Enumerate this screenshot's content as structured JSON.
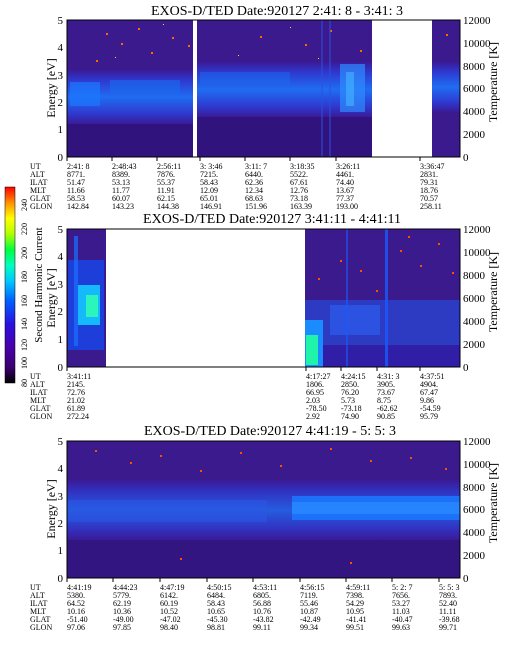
{
  "colorbar": {
    "label": "Second Harmonic Current",
    "ticks": [
      "240",
      "220",
      "200",
      "180",
      "160",
      "140",
      "120",
      "100",
      "80"
    ],
    "colors": [
      "#000000",
      "#2a0060",
      "#40008a",
      "#5a00b0",
      "#3000d8",
      "#0020ff",
      "#0070ff",
      "#00c0ff",
      "#00ffd0",
      "#00ff60",
      "#a0ff00",
      "#ffff00",
      "#ffb000",
      "#ff4000",
      "#ff0000"
    ]
  },
  "panels": [
    {
      "title": "EXOS-D/TED   Date:920127  2:41: 8 - 3:41: 3",
      "ylabel": "Energy [eV]",
      "y2label": "Temperature [K]",
      "yticks": [
        "5",
        "4",
        "3",
        "2",
        "1",
        "0"
      ],
      "y2ticks": [
        "12000",
        "10000",
        "8000",
        "6000",
        "4000",
        "2000",
        "0"
      ],
      "orbit_labels": [
        "UT",
        "ALT",
        "ILAT",
        "MLT",
        "GLAT",
        "GLON"
      ],
      "orbit_cols": [
        [
          "2:41: 8",
          "8771.",
          "51.47",
          "11.66",
          "58.53",
          "142.84"
        ],
        [
          "2:48:43",
          "8389.",
          "53.13",
          "11.77",
          "60.07",
          "143.23"
        ],
        [
          "2:56:11",
          "7876.",
          "55.37",
          "11.91",
          "62.15",
          "144.38"
        ],
        [
          "3: 3:46",
          "7215.",
          "58.43",
          "12.09",
          "65.01",
          "146.91"
        ],
        [
          "3:11: 7",
          "6440.",
          "62.36",
          "12.34",
          "68.63",
          "151.96"
        ],
        [
          "3:18:35",
          "5522.",
          "67.61",
          "12.76",
          "73.18",
          "163.39"
        ],
        [
          "3:26:11",
          "4461.",
          "74.40",
          "13.67",
          "77.37",
          "193.00"
        ],
        [
          "3:36:47",
          "2831.",
          "79.31",
          "18.76",
          "70.57",
          "258.11"
        ]
      ]
    },
    {
      "title": "EXOS-D/TED   Date:920127  3:41:11 - 4:41:11",
      "ylabel": "Energy [eV]",
      "y2label": "Temperature [K]",
      "yticks": [
        "5",
        "4",
        "3",
        "2",
        "1",
        "0"
      ],
      "y2ticks": [
        "12000",
        "10000",
        "8000",
        "6000",
        "4000",
        "2000",
        "0"
      ],
      "orbit_labels": [
        "UT",
        "ALT",
        "ILAT",
        "MLT",
        "GLAT",
        "GLON"
      ],
      "orbit_cols": [
        [
          "3:41:11",
          "2145.",
          "72.76",
          "21.02",
          "61.89",
          "272.24"
        ],
        [
          "4:17:27",
          "1806.",
          "66.95",
          "2.03",
          "-78.50",
          "2.92"
        ],
        [
          "4:24:15",
          "2850.",
          "76.20",
          "5.73",
          "-73.18",
          "74.90"
        ],
        [
          "4:31: 3",
          "3905.",
          "73.67",
          "8.75",
          "-62.62",
          "90.85"
        ],
        [
          "4:37:51",
          "4904.",
          "67.47",
          "9.86",
          "-54.59",
          "95.79"
        ]
      ]
    },
    {
      "title": "EXOS-D/TED   Date:920127  4:41:19 - 5: 5: 3",
      "ylabel": "Energy [eV]",
      "y2label": "Temperature [K]",
      "yticks": [
        "5",
        "4",
        "3",
        "2",
        "1",
        "0"
      ],
      "y2ticks": [
        "12000",
        "10000",
        "8000",
        "6000",
        "4000",
        "2000",
        "0"
      ],
      "orbit_labels": [
        "UT",
        "ALT",
        "ILAT",
        "MLT",
        "GLAT",
        "GLON"
      ],
      "orbit_cols": [
        [
          "4:41:19",
          "5380.",
          "64.52",
          "10.16",
          "-51.40",
          "97.06"
        ],
        [
          "4:44:23",
          "5779.",
          "62.19",
          "10.36",
          "-49.00",
          "97.85"
        ],
        [
          "4:47:19",
          "6142.",
          "60.19",
          "10.52",
          "-47.02",
          "98.40"
        ],
        [
          "4:50:15",
          "6484.",
          "58.43",
          "10.65",
          "-45.30",
          "98.81"
        ],
        [
          "4:53:11",
          "6805.",
          "56.88",
          "10.76",
          "-43.82",
          "99.11"
        ],
        [
          "4:56:15",
          "7119.",
          "55.46",
          "10.87",
          "-42.49",
          "99.34"
        ],
        [
          "4:59:11",
          "7398.",
          "54.29",
          "10.95",
          "-41.41",
          "99.51"
        ],
        [
          "5: 2: 7",
          "7656.",
          "53.27",
          "11.03",
          "-40.47",
          "99.63"
        ],
        [
          "5: 5: 3",
          "7893.",
          "52.40",
          "11.11",
          "-39.68",
          "99.71"
        ]
      ]
    }
  ]
}
